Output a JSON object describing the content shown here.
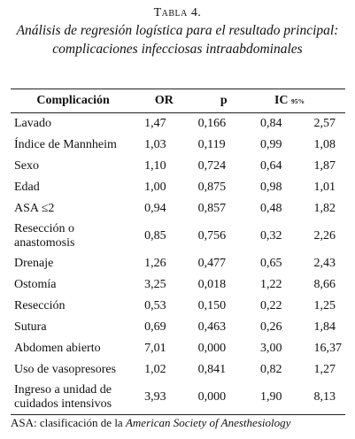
{
  "table_label": "Tabla 4.",
  "title": "Análisis de regresión logística para el resultado principal: complicaciones infecciosas intraabdominales",
  "headers": {
    "complicacion": "Complicación",
    "or": "OR",
    "p": "p",
    "ic": "IC",
    "ic_sub": "95%"
  },
  "rows": [
    {
      "complicacion": "Lavado",
      "or": "1,47",
      "p": "0,166",
      "ic_low": "0,84",
      "ic_high": "2,57"
    },
    {
      "complicacion": "Índice de Mannheim",
      "or": "1,03",
      "p": "0,119",
      "ic_low": "0,99",
      "ic_high": "1,08"
    },
    {
      "complicacion": "Sexo",
      "or": "1,10",
      "p": "0,724",
      "ic_low": "0,64",
      "ic_high": "1,87"
    },
    {
      "complicacion": "Edad",
      "or": "1,00",
      "p": "0,875",
      "ic_low": "0,98",
      "ic_high": "1,01"
    },
    {
      "complicacion": "ASA ≤2",
      "or": "0,94",
      "p": "0,857",
      "ic_low": "0,48",
      "ic_high": "1,82"
    },
    {
      "complicacion": "Resección o anastomosis",
      "or": "0,85",
      "p": "0,756",
      "ic_low": "0,32",
      "ic_high": "2,26"
    },
    {
      "complicacion": "Drenaje",
      "or": "1,26",
      "p": "0,477",
      "ic_low": "0,65",
      "ic_high": "2,43"
    },
    {
      "complicacion": "Ostomía",
      "or": "3,25",
      "p": "0,018",
      "ic_low": "1,22",
      "ic_high": "8,66"
    },
    {
      "complicacion": "Resección",
      "or": "0,53",
      "p": "0,150",
      "ic_low": "0,22",
      "ic_high": "1,25"
    },
    {
      "complicacion": "Sutura",
      "or": "0,69",
      "p": "0,463",
      "ic_low": "0,26",
      "ic_high": "1,84"
    },
    {
      "complicacion": "Abdomen abierto",
      "or": "7,01",
      "p": "0,000",
      "ic_low": "3,00",
      "ic_high": "16,37"
    },
    {
      "complicacion": "Uso de vasopresores",
      "or": "1,02",
      "p": "0,841",
      "ic_low": "0,82",
      "ic_high": "1,27"
    },
    {
      "complicacion": "Ingreso a unidad de cuidados intensivos",
      "or": "3,93",
      "p": "0,000",
      "ic_low": "1,90",
      "ic_high": "8,13"
    }
  ],
  "footnote": {
    "prefix": "ASA: clasificación de la ",
    "italic": "American Society of Anesthesiology"
  }
}
